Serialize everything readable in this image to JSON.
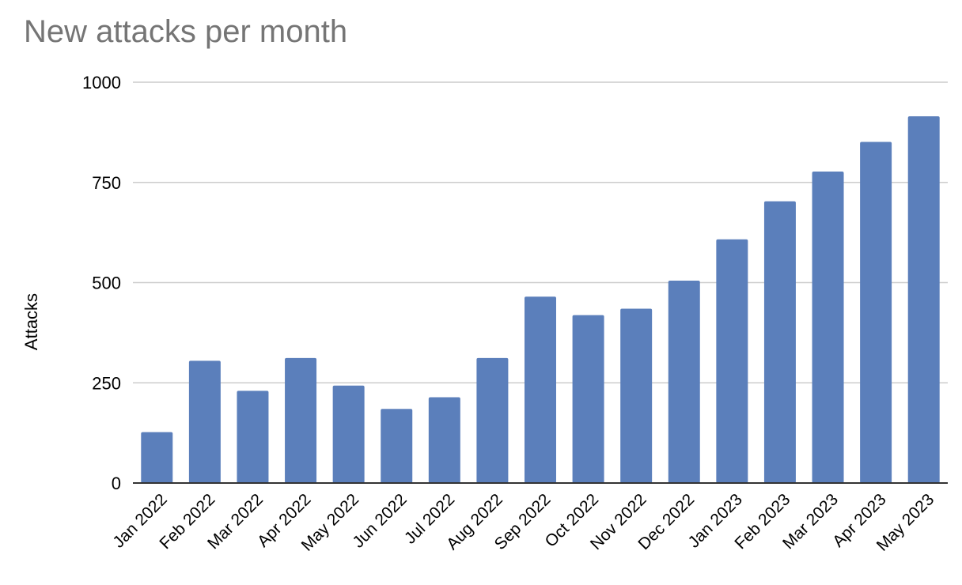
{
  "chart_data": {
    "type": "bar",
    "title": "New attacks per month",
    "xlabel": "",
    "ylabel": "Attacks",
    "ylim": [
      0,
      1000
    ],
    "yticks": [
      0,
      250,
      500,
      750,
      1000
    ],
    "grid": true,
    "legend": "none",
    "categories": [
      "Jan 2022",
      "Feb 2022",
      "Mar 2022",
      "Apr 2022",
      "May 2022",
      "Jun 2022",
      "Jul 2022",
      "Aug 2022",
      "Sep 2022",
      "Oct 2022",
      "Nov 2022",
      "Dec 2022",
      "Jan 2023",
      "Feb 2023",
      "Mar 2023",
      "Apr 2023",
      "May 2023"
    ],
    "values": [
      127,
      305,
      230,
      312,
      243,
      185,
      214,
      312,
      465,
      419,
      435,
      505,
      608,
      703,
      777,
      851,
      915
    ],
    "colors": {
      "bar": "#5b7fbb",
      "grid": "#cccccc",
      "title": "#757575",
      "axis": "#333333"
    }
  }
}
